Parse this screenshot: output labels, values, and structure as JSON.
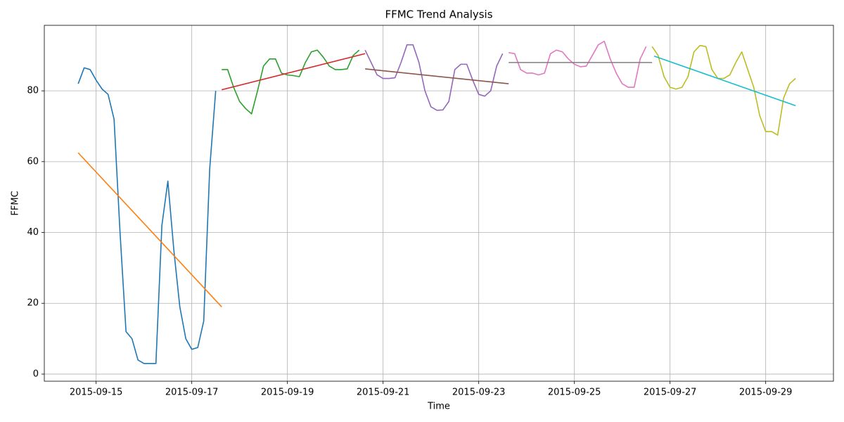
{
  "chart_data": {
    "type": "line",
    "title": "FFMC Trend Analysis",
    "x_label": "Time",
    "y_label": "FFMC",
    "xlim": [
      "2015-09-13 22:00",
      "2015-09-30 10:00"
    ],
    "xticks": [
      "2015-09-15",
      "2015-09-17",
      "2015-09-19",
      "2015-09-21",
      "2015-09-23",
      "2015-09-25",
      "2015-09-27",
      "2015-09-29"
    ],
    "ylim": [
      -2,
      98.5
    ],
    "yticks": [
      0,
      20,
      40,
      60,
      80
    ],
    "grid": true,
    "series": [
      {
        "color": "#1f77b4",
        "x": [
          "2015-09-14 15:00",
          "2015-09-14 18:00",
          "2015-09-14 21:00",
          "2015-09-15 00:00",
          "2015-09-15 03:00",
          "2015-09-15 06:00",
          "2015-09-15 09:00",
          "2015-09-15 12:00",
          "2015-09-15 15:00",
          "2015-09-15 18:00",
          "2015-09-15 21:00",
          "2015-09-16 00:00",
          "2015-09-16 03:00",
          "2015-09-16 06:00",
          "2015-09-16 09:00",
          "2015-09-16 12:00",
          "2015-09-16 15:00",
          "2015-09-16 18:00",
          "2015-09-16 21:00",
          "2015-09-17 00:00",
          "2015-09-17 03:00",
          "2015-09-17 06:00",
          "2015-09-17 09:00",
          "2015-09-17 12:00"
        ],
        "values": [
          82,
          86.5,
          86,
          83,
          80.5,
          79,
          72,
          40,
          12,
          10,
          4,
          3,
          3,
          3,
          42,
          54.5,
          35,
          19,
          10,
          7,
          7.5,
          15,
          58,
          80
        ]
      },
      {
        "color": "#ff7f0e",
        "x": [
          "2015-09-14 15:00",
          "2015-09-17 15:00"
        ],
        "values": [
          62.5,
          19
        ]
      },
      {
        "color": "#2ca02c",
        "x": [
          "2015-09-17 15:00",
          "2015-09-17 18:00",
          "2015-09-17 21:00",
          "2015-09-18 00:00",
          "2015-09-18 03:00",
          "2015-09-18 06:00",
          "2015-09-18 09:00",
          "2015-09-18 12:00",
          "2015-09-18 15:00",
          "2015-09-18 18:00",
          "2015-09-18 21:00",
          "2015-09-19 00:00",
          "2015-09-19 03:00",
          "2015-09-19 06:00",
          "2015-09-19 09:00",
          "2015-09-19 12:00",
          "2015-09-19 15:00",
          "2015-09-19 18:00",
          "2015-09-19 21:00",
          "2015-09-20 00:00",
          "2015-09-20 03:00",
          "2015-09-20 06:00",
          "2015-09-20 09:00",
          "2015-09-20 12:00"
        ],
        "values": [
          86,
          86,
          81,
          77,
          75,
          73.5,
          80,
          87,
          89,
          89,
          85,
          84.5,
          84.3,
          84,
          88,
          91,
          91.5,
          89.5,
          87,
          86,
          86,
          86.2,
          90,
          91.5
        ]
      },
      {
        "color": "#d62728",
        "x": [
          "2015-09-17 15:00",
          "2015-09-20 15:00"
        ],
        "values": [
          80.3,
          90.5
        ]
      },
      {
        "color": "#9467bd",
        "x": [
          "2015-09-20 15:00",
          "2015-09-20 18:00",
          "2015-09-20 21:00",
          "2015-09-21 00:00",
          "2015-09-21 03:00",
          "2015-09-21 06:00",
          "2015-09-21 09:00",
          "2015-09-21 12:00",
          "2015-09-21 15:00",
          "2015-09-21 18:00",
          "2015-09-21 21:00",
          "2015-09-22 00:00",
          "2015-09-22 03:00",
          "2015-09-22 06:00",
          "2015-09-22 09:00",
          "2015-09-22 12:00",
          "2015-09-22 15:00",
          "2015-09-22 18:00",
          "2015-09-22 21:00",
          "2015-09-23 00:00",
          "2015-09-23 03:00",
          "2015-09-23 06:00",
          "2015-09-23 09:00",
          "2015-09-23 12:00"
        ],
        "values": [
          91.5,
          88,
          84.5,
          83.5,
          83.5,
          83.7,
          88,
          93,
          93,
          88,
          80,
          75.5,
          74.5,
          74.6,
          77,
          86,
          87.5,
          87.5,
          83,
          79,
          78.5,
          80,
          87,
          90.5
        ]
      },
      {
        "color": "#8c564b",
        "x": [
          "2015-09-20 15:00",
          "2015-09-23 15:00"
        ],
        "values": [
          86.2,
          82
        ]
      },
      {
        "color": "#e377c2",
        "x": [
          "2015-09-23 15:00",
          "2015-09-23 18:00",
          "2015-09-23 21:00",
          "2015-09-24 00:00",
          "2015-09-24 03:00",
          "2015-09-24 06:00",
          "2015-09-24 09:00",
          "2015-09-24 12:00",
          "2015-09-24 15:00",
          "2015-09-24 18:00",
          "2015-09-24 21:00",
          "2015-09-25 00:00",
          "2015-09-25 03:00",
          "2015-09-25 06:00",
          "2015-09-25 09:00",
          "2015-09-25 12:00",
          "2015-09-25 15:00",
          "2015-09-25 18:00",
          "2015-09-25 21:00",
          "2015-09-26 00:00",
          "2015-09-26 03:00",
          "2015-09-26 06:00",
          "2015-09-26 09:00",
          "2015-09-26 12:00"
        ],
        "values": [
          90.8,
          90.5,
          86,
          85,
          85,
          84.5,
          85,
          90.5,
          91.5,
          91,
          89,
          87.5,
          86.8,
          87,
          90,
          93,
          94,
          89,
          85,
          82,
          81,
          81,
          89,
          92.5
        ]
      },
      {
        "color": "#7f7f7f",
        "x": [
          "2015-09-23 15:00",
          "2015-09-26 15:00"
        ],
        "values": [
          88,
          88
        ]
      },
      {
        "color": "#bcbd22",
        "x": [
          "2015-09-26 15:00",
          "2015-09-26 18:00",
          "2015-09-26 21:00",
          "2015-09-27 00:00",
          "2015-09-27 03:00",
          "2015-09-27 06:00",
          "2015-09-27 09:00",
          "2015-09-27 12:00",
          "2015-09-27 15:00",
          "2015-09-27 18:00",
          "2015-09-27 21:00",
          "2015-09-28 00:00",
          "2015-09-28 03:00",
          "2015-09-28 06:00",
          "2015-09-28 09:00",
          "2015-09-28 12:00",
          "2015-09-28 15:00",
          "2015-09-28 18:00",
          "2015-09-28 21:00",
          "2015-09-29 00:00",
          "2015-09-29 03:00",
          "2015-09-29 06:00",
          "2015-09-29 09:00",
          "2015-09-29 12:00",
          "2015-09-29 15:00"
        ],
        "values": [
          92.5,
          90,
          84,
          81,
          80.5,
          81,
          84,
          91,
          92.8,
          92.5,
          86,
          83.5,
          83.5,
          84.5,
          88,
          91,
          86,
          81,
          73,
          68.5,
          68.5,
          67.5,
          78,
          82,
          83.5
        ]
      },
      {
        "color": "#17becf",
        "x": [
          "2015-09-26 16:00",
          "2015-09-29 15:00"
        ],
        "values": [
          89.8,
          75.8
        ]
      }
    ]
  }
}
